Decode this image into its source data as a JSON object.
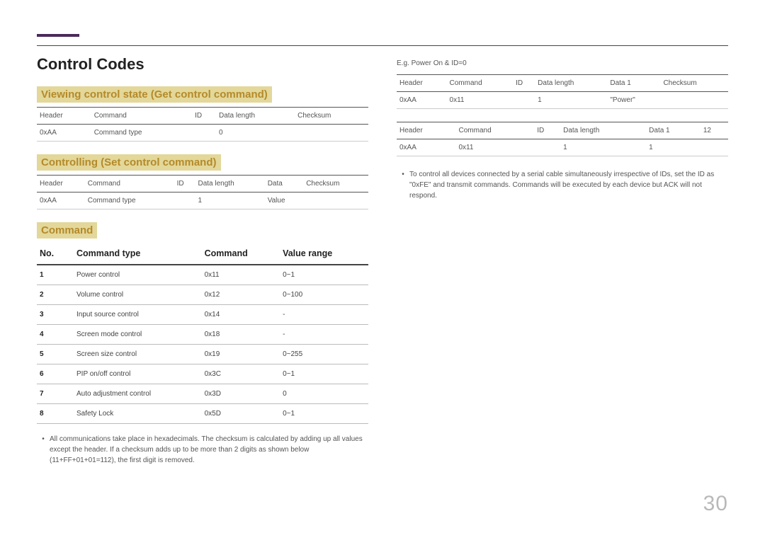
{
  "page": {
    "title": "Control Codes",
    "page_number": "30",
    "accent_color": "#4a2a5a",
    "highlight_bg": "#e3d79a",
    "highlight_text": "#b48a2a"
  },
  "left": {
    "section1": {
      "heading": "Viewing control state (Get control command)",
      "cols": [
        "Header",
        "Command",
        "ID",
        "Data length",
        "Checksum"
      ],
      "row": [
        "0xAA",
        "Command type",
        "",
        "0",
        ""
      ]
    },
    "section2": {
      "heading": "Controlling (Set control command)",
      "cols": [
        "Header",
        "Command",
        "ID",
        "Data length",
        "Data",
        "Checksum"
      ],
      "row": [
        "0xAA",
        "Command type",
        "",
        "1",
        "Value",
        ""
      ]
    },
    "section3": {
      "heading": "Command",
      "cols": [
        "No.",
        "Command type",
        "Command",
        "Value range"
      ],
      "rows": [
        [
          "1",
          "Power control",
          "0x11",
          "0~1"
        ],
        [
          "2",
          "Volume control",
          "0x12",
          "0~100"
        ],
        [
          "3",
          "Input source control",
          "0x14",
          "-"
        ],
        [
          "4",
          "Screen mode control",
          "0x18",
          "-"
        ],
        [
          "5",
          "Screen size control",
          "0x19",
          "0~255"
        ],
        [
          "6",
          "PIP on/off control",
          "0x3C",
          "0~1"
        ],
        [
          "7",
          "Auto adjustment control",
          "0x3D",
          "0"
        ],
        [
          "8",
          "Safety Lock",
          "0x5D",
          "0~1"
        ]
      ]
    },
    "footnote": "All communications take place in hexadecimals. The checksum is calculated by adding up all values except the header. If a checksum adds up to be more than 2 digits as shown below (11+FF+01+01=112), the first digit is removed."
  },
  "right": {
    "example_label": "E.g. Power On & ID=0",
    "table1": {
      "cols": [
        "Header",
        "Command",
        "ID",
        "Data length",
        "Data 1",
        "Checksum"
      ],
      "row": [
        "0xAA",
        "0x11",
        "",
        "1",
        "\"Power\"",
        ""
      ]
    },
    "table2": {
      "cols": [
        "Header",
        "Command",
        "ID",
        "Data length",
        "Data 1",
        "12"
      ],
      "row": [
        "0xAA",
        "0x11",
        "",
        "1",
        "1",
        ""
      ]
    },
    "footnote": "To control all devices connected by a serial cable simultaneously irrespective of IDs, set the ID as \"0xFE\" and transmit commands. Commands will be executed by each device but ACK will not respond."
  }
}
